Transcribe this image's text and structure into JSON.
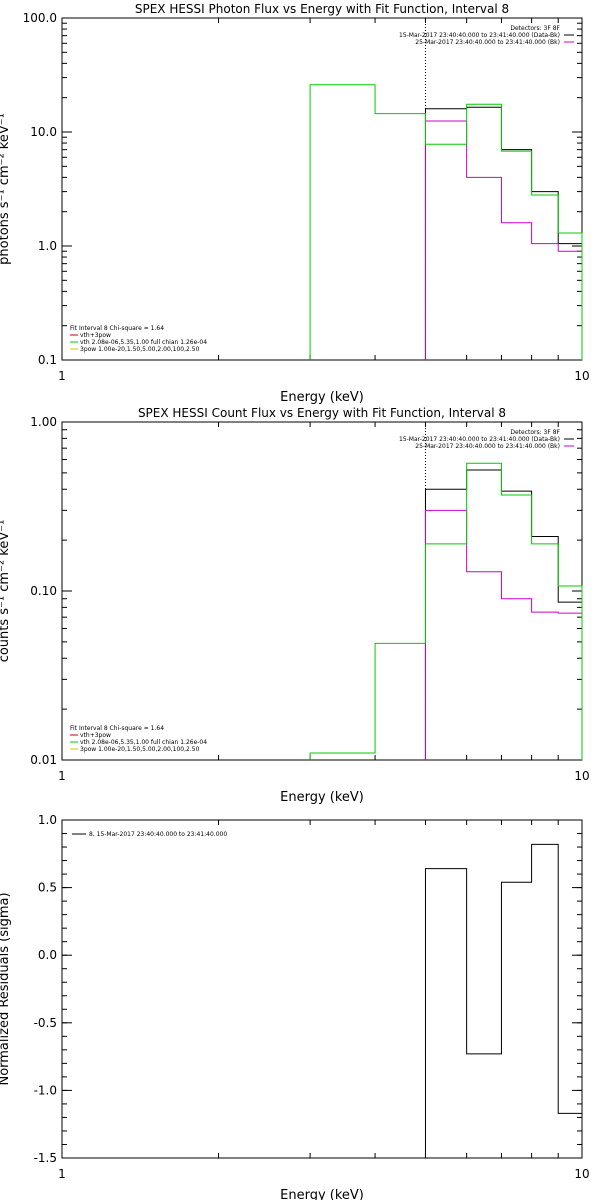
{
  "chart_data": [
    {
      "type": "line",
      "title": "SPEX HESSI Photon Flux vs Energy with Fit Function, Interval 8",
      "xlabel": "Energy (keV)",
      "ylabel": "photons s⁻¹ cm⁻² keV⁻¹",
      "xscale": "log",
      "yscale": "log",
      "xlim": [
        1,
        10
      ],
      "ylim": [
        0.1,
        100
      ],
      "xticks": [
        "1",
        "10"
      ],
      "yticks": [
        "0.1",
        "1.0",
        "10.0",
        "100.0"
      ],
      "dotted_line_x": 5,
      "legend_top": [
        "Detectors: 3F 8F",
        "15-Mar-2017 23:40:40.000 to 23:41:40.000 (Data-Bk)",
        "25-Mar-2017 23:40:40.000 to 23:41:40.000 (Bk)"
      ],
      "legend_bottom": [
        "Fit Interval  8    Chi-square = 1.64",
        "vth+3pow",
        "vth 2.08e-06,5.35,1.00  full chian 1.26e-04",
        "3pow 1.00e-20,1.50,5.00,2.00,100,2.50"
      ],
      "series": [
        {
          "name": "Data-Bk",
          "color": "#000000",
          "edges": [
            5,
            6,
            7,
            8,
            9,
            10
          ],
          "values": [
            16,
            16.5,
            7,
            3,
            1.05
          ]
        },
        {
          "name": "Bk",
          "color": "#cc00cc",
          "edges": [
            5,
            6,
            7,
            8,
            9,
            10
          ],
          "values": [
            12.5,
            4,
            1.6,
            1.05,
            0.9
          ]
        },
        {
          "name": "vth 2.08e-06,5.35,1.00  full chian 1.26e-04",
          "color": "#00cc00",
          "edges": [
            3,
            4,
            5,
            6,
            7,
            8,
            9,
            10
          ],
          "values": [
            26,
            14.5,
            7.8,
            17.5,
            6.8,
            2.8,
            1.3
          ]
        },
        {
          "name": "vth+3pow",
          "color": "#cc0000",
          "edges": [],
          "values": []
        },
        {
          "name": "3pow 1.00e-20,1.50,5.00,2.00,100,2.50",
          "color": "#cccc00",
          "edges": [],
          "values": []
        }
      ]
    },
    {
      "type": "line",
      "title": "SPEX HESSI Count Flux vs Energy with Fit Function, Interval 8",
      "xlabel": "Energy (keV)",
      "ylabel": "counts s⁻¹ cm⁻² keV⁻¹",
      "xscale": "log",
      "yscale": "log",
      "xlim": [
        1,
        10
      ],
      "ylim": [
        0.01,
        1
      ],
      "xticks": [
        "1",
        "10"
      ],
      "yticks": [
        "0.01",
        "0.10",
        "1.00"
      ],
      "dotted_line_x": 5,
      "legend_top": [
        "Detectors: 3F 8F",
        "15-Mar-2017 23:40:40.000 to 23:41:40.000 (Data-Bk)",
        "25-Mar-2017 23:40:40.000 to 23:41:40.000 (Bk)"
      ],
      "legend_bottom": [
        "Fit Interval  8    Chi-square = 1.64",
        "vth+3pow",
        "vth 2.08e-06,5.35,1.00  full chian 1.26e-04",
        "3pow 1.00e-20,1.50,5.00,2.00,100,2.50"
      ],
      "series": [
        {
          "name": "Data-Bk",
          "color": "#000000",
          "edges": [
            5,
            6,
            7,
            8,
            9,
            10
          ],
          "values": [
            0.4,
            0.52,
            0.39,
            0.21,
            0.086
          ]
        },
        {
          "name": "Bk",
          "color": "#cc00cc",
          "edges": [
            5,
            6,
            7,
            8,
            9,
            10
          ],
          "values": [
            0.3,
            0.13,
            0.09,
            0.075,
            0.074
          ]
        },
        {
          "name": "vth 2.08e-06,5.35,1.00  full chian 1.26e-04",
          "color": "#00cc00",
          "edges": [
            3,
            4,
            5,
            6,
            7,
            8,
            9,
            10
          ],
          "values": [
            0.011,
            0.049,
            0.19,
            0.57,
            0.37,
            0.19,
            0.107
          ]
        },
        {
          "name": "vth+3pow",
          "color": "#cc0000",
          "edges": [],
          "values": []
        },
        {
          "name": "3pow 1.00e-20,1.50,5.00,2.00,100,2.50",
          "color": "#cccc00",
          "edges": [],
          "values": []
        }
      ]
    },
    {
      "type": "line",
      "title": "",
      "xlabel": "Energy (keV)",
      "ylabel": "Normalized Residuals (sigma)",
      "xscale": "log",
      "yscale": "linear",
      "xlim": [
        1,
        10
      ],
      "ylim": [
        -1.5,
        1.0
      ],
      "xticks": [
        "1",
        "10"
      ],
      "yticks": [
        "-1.5",
        "-1.0",
        "-0.5",
        "0.0",
        "0.5",
        "1.0"
      ],
      "legend_top": [
        "8, 15-Mar-2017 23:40:40.000 to 23:41:40.000"
      ],
      "series": [
        {
          "name": "8, 15-Mar-2017 23:40:40.000 to 23:41:40.000",
          "color": "#000000",
          "edges": [
            5,
            6,
            7,
            8,
            9,
            10
          ],
          "values": [
            0.64,
            -0.73,
            0.54,
            0.82,
            -1.17
          ]
        }
      ]
    }
  ]
}
